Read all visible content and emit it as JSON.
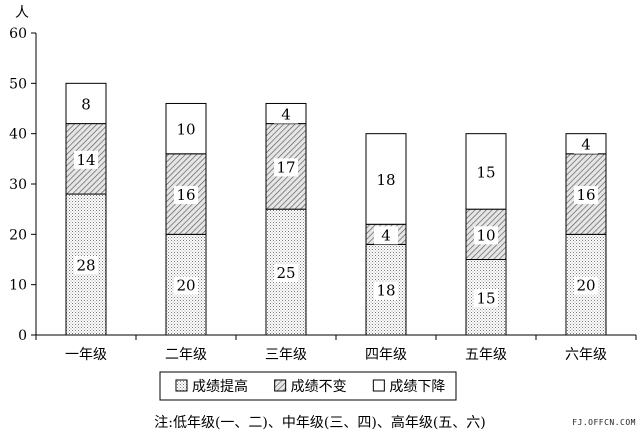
{
  "chart_data": {
    "type": "bar",
    "stacked": true,
    "ylabel": "人",
    "ylim": [
      0,
      60
    ],
    "yticks": [
      0,
      10,
      20,
      30,
      40,
      50,
      60
    ],
    "categories": [
      "一年级",
      "二年级",
      "三年级",
      "四年级",
      "五年级",
      "六年级"
    ],
    "series": [
      {
        "name": "成绩提高",
        "values": [
          28,
          20,
          25,
          18,
          15,
          20
        ],
        "pattern": "dots"
      },
      {
        "name": "成绩不变",
        "values": [
          14,
          16,
          17,
          4,
          10,
          16
        ],
        "pattern": "hatch"
      },
      {
        "name": "成绩下降",
        "values": [
          8,
          10,
          4,
          18,
          15,
          4
        ],
        "pattern": "blank"
      }
    ],
    "legend_position": "bottom",
    "grid": false
  },
  "note": "注:低年级(一、二)、中年级(三、四)、高年级(五、六)",
  "watermark": "FJ.OFFCN.COM"
}
